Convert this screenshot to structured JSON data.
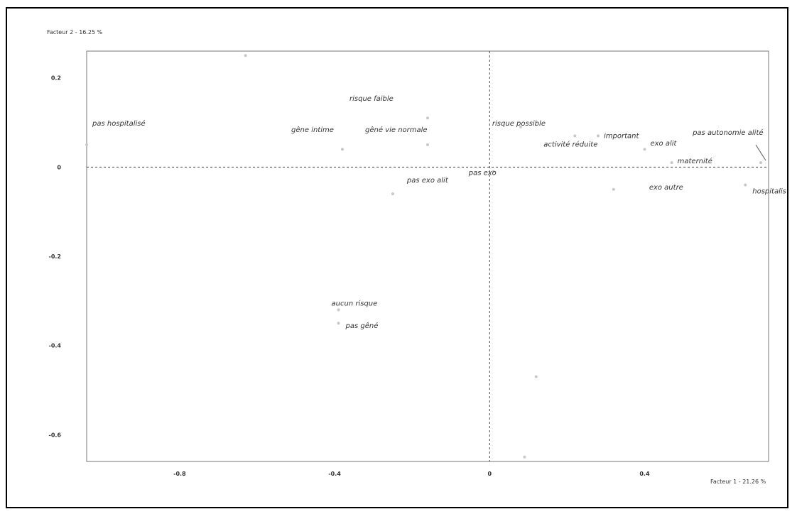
{
  "chart_data": {
    "type": "scatter",
    "title": "",
    "xlabel": "Facteur 1 - 21.26 %",
    "ylabel": "Facteur 2 - 16.25 %",
    "xlim": [
      -1.04,
      0.72
    ],
    "ylim": [
      -0.66,
      0.26
    ],
    "x_ticks": [
      {
        "value": -0.8,
        "label": "-0.8"
      },
      {
        "value": -0.4,
        "label": "-0.4"
      },
      {
        "value": 0,
        "label": "0"
      },
      {
        "value": 0.4,
        "label": "0.4"
      }
    ],
    "y_ticks": [
      {
        "value": 0.2,
        "label": "0.2"
      },
      {
        "value": 0,
        "label": "0"
      },
      {
        "value": -0.2,
        "label": "-0.2"
      },
      {
        "value": -0.4,
        "label": "-0.4"
      },
      {
        "value": -0.6,
        "label": "-0.6"
      }
    ],
    "grid": false,
    "points": [
      {
        "label": "pas hospitalisé",
        "x": -1.04,
        "y": 0.05
      },
      {
        "label": "gêne intime",
        "x": -0.38,
        "y": 0.04
      },
      {
        "label": "risque faible",
        "x": -0.16,
        "y": 0.11
      },
      {
        "label": "gêné vie normale",
        "x": -0.16,
        "y": 0.05
      },
      {
        "label": "pas exo",
        "x": 0.01,
        "y": -0.01
      },
      {
        "label": "pas exo alit",
        "x": -0.25,
        "y": -0.06
      },
      {
        "label": "risque possible",
        "x": 0.08,
        "y": 0.09
      },
      {
        "label": "activité réduite",
        "x": 0.22,
        "y": 0.07
      },
      {
        "label": "important",
        "x": 0.28,
        "y": 0.07
      },
      {
        "label": "exo alit",
        "x": 0.4,
        "y": 0.04
      },
      {
        "label": "maternité",
        "x": 0.47,
        "y": 0.01
      },
      {
        "label": "exo autre",
        "x": 0.32,
        "y": -0.05
      },
      {
        "label": "pas autonomie alité",
        "x": 0.7,
        "y": 0.01
      },
      {
        "label": "hospitalis",
        "x": 0.66,
        "y": -0.04
      },
      {
        "label": "aucun risque",
        "x": -0.39,
        "y": -0.32
      },
      {
        "label": "pas gêné",
        "x": -0.39,
        "y": -0.35
      }
    ],
    "unlabeled_points": [
      {
        "x": -0.63,
        "y": 0.25
      },
      {
        "x": 0.12,
        "y": -0.47
      },
      {
        "x": 0.09,
        "y": -0.65
      }
    ]
  }
}
